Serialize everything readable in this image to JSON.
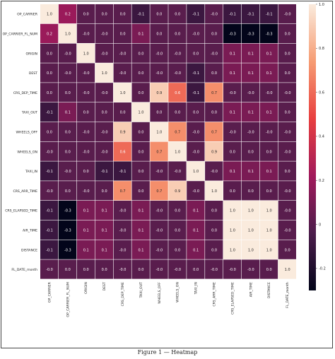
{
  "caption": "Figure 1 — Heatmap",
  "chart_data": {
    "type": "heatmap",
    "title": "",
    "xlabel": "",
    "ylabel": "",
    "labels": [
      "OP_CARRIER",
      "OP_CARRIER_FL_NUM",
      "ORIGIN",
      "DEST",
      "CRS_DEP_TIME",
      "TAXI_OUT",
      "WHEELS_OFF",
      "WHEELS_ON",
      "TAXI_IN",
      "CRS_ARR_TIME",
      "CRS_ELAPSED_TIME",
      "AIR_TIME",
      "DISTANCE",
      "FL_DATE_month"
    ],
    "matrix": [
      [
        "1.0",
        "0.2",
        "0.0",
        "0.0",
        "0.0",
        "-0.1",
        "0.0",
        "0.0",
        "-0.1",
        "-0.0",
        "-0.1",
        "-0.1",
        "-0.1",
        "-0.0"
      ],
      [
        "0.2",
        "1.0",
        "-0.0",
        "-0.0",
        "0.0",
        "0.1",
        "0.0",
        "0.0",
        "-0.0",
        "0.0",
        "-0.3",
        "-0.3",
        "-0.3",
        "0.0"
      ],
      [
        "0.0",
        "-0.0",
        "1.0",
        "-0.0",
        "-0.0",
        "0.0",
        "-0.0",
        "-0.0",
        "0.0",
        "-0.0",
        "0.1",
        "0.1",
        "0.1",
        "0.0"
      ],
      [
        "0.0",
        "-0.0",
        "-0.0",
        "1.0",
        "-0.0",
        "0.0",
        "-0.0",
        "-0.0",
        "-0.1",
        "0.0",
        "0.1",
        "0.1",
        "0.1",
        "0.0"
      ],
      [
        "0.0",
        "0.0",
        "-0.0",
        "-0.0",
        "1.0",
        "0.0",
        "0.9",
        "0.6",
        "-0.1",
        "0.7",
        "-0.0",
        "-0.0",
        "-0.0",
        "-0.0"
      ],
      [
        "-0.1",
        "0.1",
        "0.0",
        "0.0",
        "0.0",
        "1.0",
        "0.0",
        "0.0",
        "0.0",
        "0.0",
        "0.1",
        "0.1",
        "0.1",
        "0.0"
      ],
      [
        "0.0",
        "0.0",
        "-0.0",
        "-0.0",
        "0.9",
        "0.0",
        "1.0",
        "0.7",
        "-0.0",
        "0.7",
        "-0.0",
        "-0.0",
        "-0.0",
        "-0.0"
      ],
      [
        "-0.0",
        "0.0",
        "-0.0",
        "-0.0",
        "0.6",
        "0.0",
        "0.7",
        "1.0",
        "-0.0",
        "0.9",
        "0.0",
        "0.0",
        "0.0",
        "-0.0"
      ],
      [
        "-0.1",
        "-0.0",
        "0.0",
        "-0.1",
        "-0.1",
        "0.0",
        "-0.0",
        "-0.0",
        "1.0",
        "-0.0",
        "0.1",
        "0.1",
        "0.1",
        "0.0"
      ],
      [
        "-0.0",
        "0.0",
        "-0.0",
        "0.0",
        "0.7",
        "0.0",
        "0.7",
        "0.9",
        "-0.0",
        "1.0",
        "0.0",
        "0.0",
        "0.0",
        "-0.0"
      ],
      [
        "-0.1",
        "-0.3",
        "0.1",
        "0.1",
        "-0.0",
        "0.1",
        "-0.0",
        "0.0",
        "0.1",
        "0.0",
        "1.0",
        "1.0",
        "1.0",
        "-0.0"
      ],
      [
        "-0.1",
        "-0.3",
        "0.1",
        "0.1",
        "-0.0",
        "0.1",
        "-0.0",
        "0.0",
        "0.1",
        "0.0",
        "1.0",
        "1.0",
        "1.0",
        "-0.0"
      ],
      [
        "-0.1",
        "-0.3",
        "0.1",
        "0.1",
        "-0.0",
        "0.1",
        "-0.0",
        "0.0",
        "0.1",
        "0.0",
        "1.0",
        "1.0",
        "1.0",
        "0.0"
      ],
      [
        "-0.0",
        "0.0",
        "0.0",
        "0.0",
        "-0.0",
        "0.0",
        "-0.0",
        "-0.0",
        "0.0",
        "-0.0",
        "-0.0",
        "-0.0",
        "0.0",
        "1.0"
      ]
    ],
    "vmin": -0.3,
    "vmax": 1.0,
    "colorbar_ticks": [
      "1.0",
      "0.8",
      "0.6",
      "0.4",
      "0.2",
      "0",
      "-0.2"
    ],
    "colormap": [
      "#03051a",
      "#4c1d4b",
      "#a11a5b",
      "#e83f3f",
      "#f69c73",
      "#faebdd"
    ],
    "annotation_color_dark": "#ffffff",
    "annotation_color_light": "#262626"
  }
}
